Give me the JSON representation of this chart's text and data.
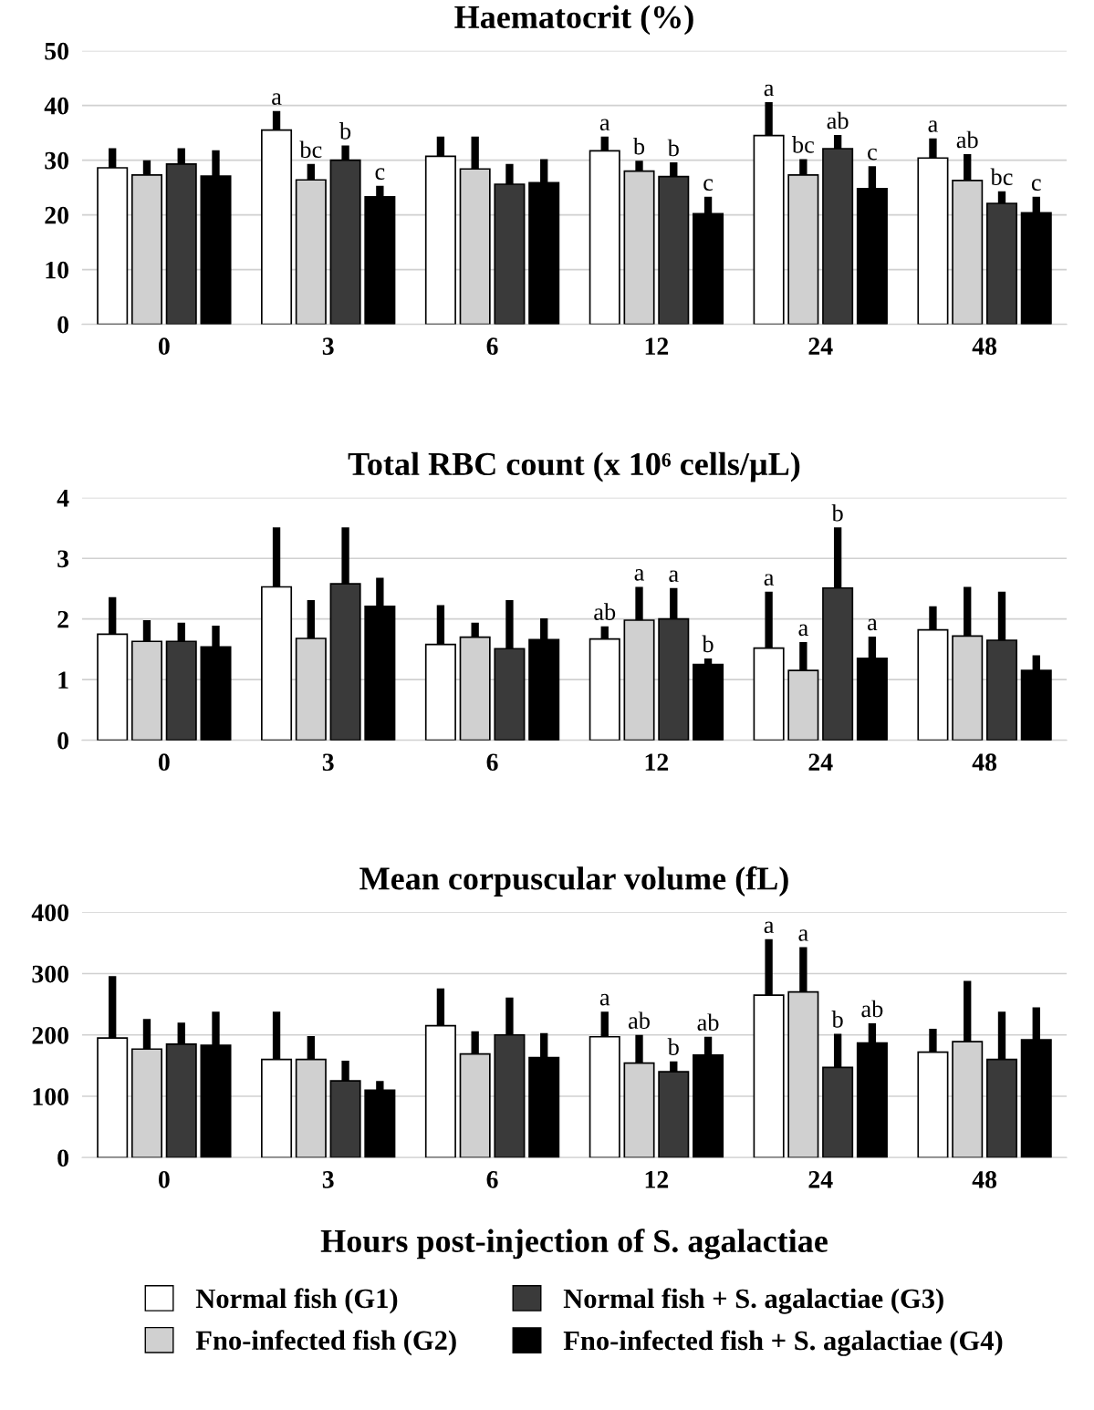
{
  "chart_data": [
    {
      "type": "bar",
      "title": "Haematocrit (%)",
      "categories": [
        "0",
        "3",
        "6",
        "12",
        "24",
        "48"
      ],
      "ylim": [
        0,
        50
      ],
      "yticks": [
        0,
        10,
        20,
        30,
        40,
        50
      ],
      "grid": "y",
      "legend": false,
      "series": [
        {
          "color": "#ffffff",
          "values": [
            28.6,
            35.5,
            30.7,
            31.7,
            34.5,
            30.4
          ],
          "errors": [
            [
              28.6,
              32.2
            ],
            [
              35.5,
              39.0
            ],
            [
              30.7,
              34.3
            ],
            [
              31.7,
              34.3
            ],
            [
              34.5,
              40.6
            ],
            [
              30.4,
              34.0
            ]
          ],
          "value_labels": [
            null,
            "a",
            null,
            "a",
            "a",
            "a"
          ]
        },
        {
          "color": "#d0d0d0",
          "values": [
            27.3,
            26.4,
            28.4,
            28.0,
            27.3,
            26.3
          ],
          "errors": [
            [
              27.3,
              30.0
            ],
            [
              26.4,
              29.3
            ],
            [
              28.4,
              34.3
            ],
            [
              28.0,
              29.9
            ],
            [
              27.3,
              30.2
            ],
            [
              26.3,
              31.1
            ]
          ],
          "value_labels": [
            null,
            "bc",
            null,
            "b",
            "bc",
            "ab"
          ]
        },
        {
          "color": "#3a3a3a",
          "values": [
            29.3,
            30.0,
            25.6,
            27.0,
            32.1,
            22.1
          ],
          "errors": [
            [
              29.3,
              32.2
            ],
            [
              30.0,
              32.7
            ],
            [
              25.6,
              29.3
            ],
            [
              27.0,
              29.6
            ],
            [
              32.1,
              34.6
            ],
            [
              22.1,
              24.3
            ]
          ],
          "value_labels": [
            null,
            "b",
            null,
            "b",
            "ab",
            "bc"
          ]
        },
        {
          "color": "#000000",
          "values": [
            27.1,
            23.3,
            25.9,
            20.2,
            24.8,
            20.4
          ],
          "errors": [
            [
              27.1,
              31.8
            ],
            [
              23.3,
              25.3
            ],
            [
              25.9,
              30.2
            ],
            [
              20.2,
              23.3
            ],
            [
              24.8,
              28.9
            ],
            [
              20.4,
              23.3
            ]
          ],
          "value_labels": [
            null,
            "c",
            null,
            "c",
            "c",
            "c"
          ]
        }
      ]
    },
    {
      "type": "bar",
      "title": "Total RBC count (x 10⁶ cells/µL)",
      "categories": [
        "0",
        "3",
        "6",
        "12",
        "24",
        "48"
      ],
      "ylim": [
        0,
        4
      ],
      "yticks": [
        0,
        1,
        2,
        3,
        4
      ],
      "grid": "y",
      "legend": false,
      "series": [
        {
          "color": "#ffffff",
          "values": [
            1.75,
            2.53,
            1.58,
            1.67,
            1.52,
            1.82
          ],
          "errors": [
            [
              1.75,
              2.36
            ],
            [
              2.53,
              3.51
            ],
            [
              1.58,
              2.23
            ],
            [
              1.67,
              1.88
            ],
            [
              1.52,
              2.45
            ],
            [
              1.82,
              2.21
            ]
          ],
          "value_labels": [
            null,
            null,
            null,
            "ab",
            "a",
            null
          ]
        },
        {
          "color": "#d0d0d0",
          "values": [
            1.63,
            1.68,
            1.7,
            1.98,
            1.15,
            1.72
          ],
          "errors": [
            [
              1.63,
              1.98
            ],
            [
              1.68,
              2.31
            ],
            [
              1.7,
              1.94
            ],
            [
              1.98,
              2.53
            ],
            [
              1.15,
              1.62
            ],
            [
              1.72,
              2.53
            ]
          ],
          "value_labels": [
            null,
            null,
            null,
            "a",
            "a",
            null
          ]
        },
        {
          "color": "#3a3a3a",
          "values": [
            1.63,
            2.58,
            1.51,
            2.0,
            2.51,
            1.65
          ],
          "errors": [
            [
              1.63,
              1.94
            ],
            [
              2.58,
              3.51
            ],
            [
              1.51,
              2.31
            ],
            [
              2.0,
              2.51
            ],
            [
              2.51,
              3.51
            ],
            [
              1.65,
              2.45
            ]
          ],
          "value_labels": [
            null,
            null,
            null,
            "a",
            "b",
            null
          ]
        },
        {
          "color": "#000000",
          "values": [
            1.54,
            2.21,
            1.66,
            1.25,
            1.35,
            1.15
          ],
          "errors": [
            [
              1.54,
              1.89
            ],
            [
              2.21,
              2.68
            ],
            [
              1.66,
              2.01
            ],
            [
              1.25,
              1.35
            ],
            [
              1.35,
              1.71
            ],
            [
              1.15,
              1.4
            ]
          ],
          "value_labels": [
            null,
            null,
            null,
            "b",
            "a",
            null
          ]
        }
      ]
    },
    {
      "type": "bar",
      "title": "Mean corpuscular volume (fL)",
      "xlabel": "Hours post-injection of S. agalactiae",
      "categories": [
        "0",
        "3",
        "6",
        "12",
        "24",
        "48"
      ],
      "ylim": [
        0,
        400
      ],
      "yticks": [
        0,
        100,
        200,
        300,
        400
      ],
      "grid": "y",
      "legend": "bottom",
      "series": [
        {
          "name": "Normal fish (G1)",
          "color": "#ffffff",
          "values": [
            195,
            160,
            215,
            197,
            265,
            172
          ],
          "errors": [
            [
              195,
              296
            ],
            [
              160,
              238
            ],
            [
              215,
              276
            ],
            [
              197,
              238
            ],
            [
              265,
              356
            ],
            [
              172,
              210
            ]
          ],
          "value_labels": [
            null,
            null,
            null,
            "a",
            "a",
            null
          ]
        },
        {
          "name": "Fno-infected fish (G2)",
          "color": "#d0d0d0",
          "values": [
            177,
            160,
            169,
            154,
            270,
            189
          ],
          "errors": [
            [
              177,
              226
            ],
            [
              160,
              198
            ],
            [
              169,
              206
            ],
            [
              154,
              200
            ],
            [
              270,
              343
            ],
            [
              189,
              288
            ]
          ],
          "value_labels": [
            null,
            null,
            null,
            "ab",
            "a",
            null
          ]
        },
        {
          "name": "Normal fish + S. agalactiae (G3)",
          "color": "#3a3a3a",
          "values": [
            185,
            125,
            200,
            140,
            147,
            160
          ],
          "errors": [
            [
              185,
              220
            ],
            [
              125,
              158
            ],
            [
              200,
              261
            ],
            [
              140,
              157
            ],
            [
              147,
              202
            ],
            [
              160,
              238
            ]
          ],
          "value_labels": [
            null,
            null,
            null,
            "b",
            "b",
            null
          ]
        },
        {
          "name": "Fno-infected fish + S. agalactiae (G4)",
          "color": "#000000",
          "values": [
            183,
            110,
            163,
            167,
            187,
            192
          ],
          "errors": [
            [
              183,
              238
            ],
            [
              110,
              125
            ],
            [
              163,
              203
            ],
            [
              167,
              197
            ],
            [
              187,
              219
            ],
            [
              192,
              245
            ]
          ],
          "value_labels": [
            null,
            null,
            null,
            "ab",
            "ab",
            null
          ]
        }
      ]
    }
  ]
}
